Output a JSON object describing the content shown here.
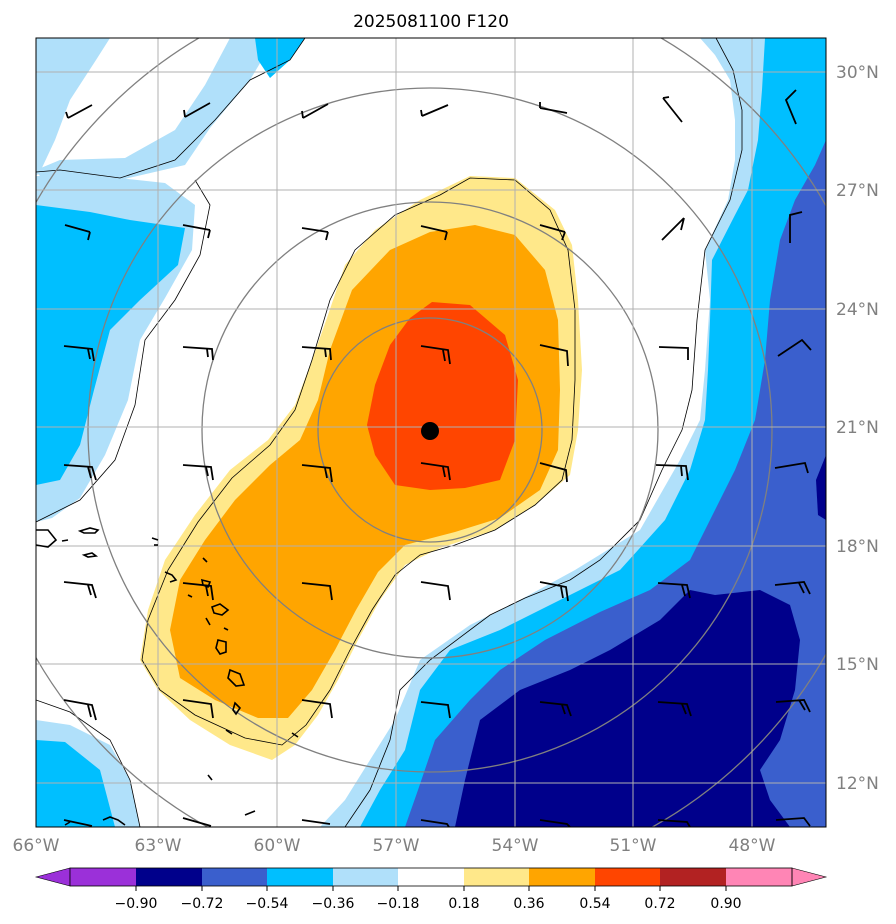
{
  "title": "2025081100 F120",
  "map": {
    "lat_labels": [
      "30°N",
      "27°N",
      "24°N",
      "21°N",
      "18°N",
      "15°N",
      "12°N"
    ],
    "lon_labels": [
      "66°W",
      "63°W",
      "60°W",
      "57°W",
      "54°W",
      "51°W",
      "48°W"
    ],
    "center_marker": {
      "lat": 20.9,
      "lon": -55.7
    }
  },
  "colorbar": {
    "tick_labels": [
      "−0.90",
      "−0.72",
      "−0.54",
      "−0.36",
      "−0.18",
      "0.18",
      "0.36",
      "0.54",
      "0.72",
      "0.90"
    ],
    "colors": {
      "under": "#9b30d9",
      "lvl_m090": "#00008b",
      "lvl_m072": "#3a5fcd",
      "lvl_m054": "#00bfff",
      "lvl_m036": "#b0e0fa",
      "lvl_zero": "#ffffff",
      "lvl_p018": "#ffe88a",
      "lvl_p036": "#ffa500",
      "lvl_p054": "#ff4500",
      "lvl_p072": "#b22222",
      "over": "#ff85b5"
    }
  }
}
